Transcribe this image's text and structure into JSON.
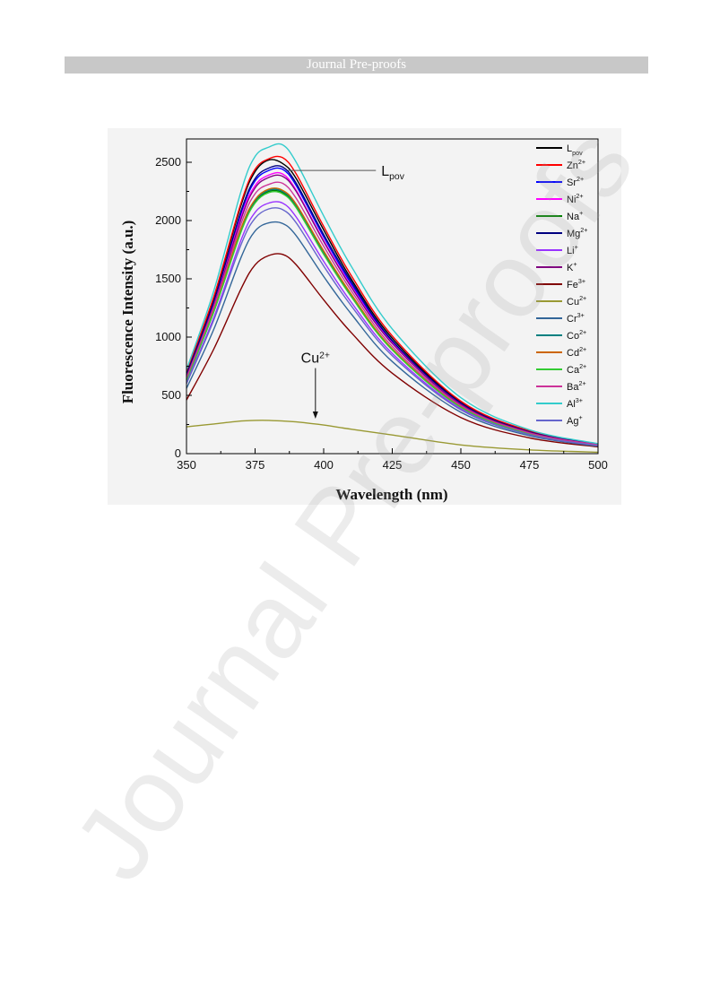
{
  "header": {
    "banner_text": "Journal Pre-proofs"
  },
  "watermark": {
    "text": "Journal Pre-proofs"
  },
  "chart_data": {
    "type": "line",
    "xlabel": "Wavelength (nm)",
    "ylabel": "Fluorescence Intensity (a.u.)",
    "xlim": [
      350,
      500
    ],
    "ylim": [
      0,
      2700
    ],
    "xticks": [
      350,
      375,
      400,
      425,
      450,
      475,
      500
    ],
    "yticks": [
      0,
      500,
      1000,
      1500,
      2000,
      2500
    ],
    "grid": false,
    "legend_position": "top-right",
    "annotations": [
      {
        "base": "L",
        "sup": "",
        "sub": "pov",
        "x": 387,
        "y": 2430,
        "text_x": 421,
        "text_y": 2400,
        "kind": "line"
      },
      {
        "base": "Cu",
        "sup": "2+",
        "sub": "",
        "x": 397,
        "y": 300,
        "text_x": 397,
        "text_y": 780,
        "kind": "arrow"
      }
    ],
    "series": [
      {
        "name_base": "L",
        "name_sup": "",
        "name_sub": "pov",
        "color": "#000000",
        "peak": 2520,
        "x": [
          350,
          360,
          370,
          375,
          380,
          385,
          390,
          400,
          410,
          425,
          450,
          475,
          500
        ],
        "values": [
          690,
          1340,
          2140,
          2420,
          2520,
          2490,
          2360,
          1920,
          1500,
          990,
          440,
          190,
          80
        ]
      },
      {
        "name_base": "Zn",
        "name_sup": "2+",
        "name_sub": "",
        "color": "#ff0000",
        "peak": 2540,
        "x": [
          350,
          360,
          370,
          375,
          380,
          385,
          390,
          400,
          410,
          425,
          450,
          475,
          500
        ],
        "values": [
          700,
          1350,
          2160,
          2440,
          2530,
          2540,
          2400,
          1950,
          1530,
          1010,
          450,
          195,
          82
        ]
      },
      {
        "name_base": "Sr",
        "name_sup": "2+",
        "name_sub": "",
        "color": "#0000ff",
        "peak": 2440,
        "x": [
          350,
          360,
          370,
          375,
          380,
          385,
          390,
          400,
          410,
          425,
          450,
          475,
          500
        ],
        "values": [
          670,
          1300,
          2070,
          2340,
          2430,
          2440,
          2300,
          1860,
          1460,
          960,
          430,
          185,
          78
        ]
      },
      {
        "name_base": "Ni",
        "name_sup": "2+",
        "name_sub": "",
        "color": "#ff00ff",
        "peak": 2400,
        "x": [
          350,
          360,
          370,
          375,
          380,
          385,
          390,
          400,
          410,
          425,
          450,
          475,
          500
        ],
        "values": [
          660,
          1280,
          2040,
          2300,
          2390,
          2400,
          2260,
          1830,
          1440,
          950,
          425,
          183,
          77
        ]
      },
      {
        "name_base": "Na",
        "name_sup": "+",
        "name_sub": "",
        "color": "#008000",
        "peak": 2250,
        "x": [
          350,
          360,
          370,
          375,
          380,
          385,
          390,
          400,
          410,
          425,
          450,
          475,
          500
        ],
        "values": [
          630,
          1220,
          1920,
          2160,
          2250,
          2240,
          2120,
          1720,
          1350,
          890,
          400,
          172,
          72
        ]
      },
      {
        "name_base": "Mg",
        "name_sup": "2+",
        "name_sub": "",
        "color": "#000080",
        "peak": 2460,
        "x": [
          350,
          360,
          370,
          375,
          380,
          385,
          390,
          400,
          410,
          425,
          450,
          475,
          500
        ],
        "values": [
          680,
          1310,
          2090,
          2360,
          2450,
          2460,
          2320,
          1880,
          1480,
          970,
          435,
          187,
          79
        ]
      },
      {
        "name_base": "Li",
        "name_sup": "+",
        "name_sub": "",
        "color": "#9933ff",
        "peak": 2150,
        "x": [
          350,
          360,
          370,
          375,
          380,
          385,
          390,
          400,
          410,
          425,
          450,
          475,
          500
        ],
        "values": [
          610,
          1170,
          1840,
          2070,
          2150,
          2150,
          2030,
          1650,
          1300,
          860,
          385,
          165,
          70
        ]
      },
      {
        "name_base": "K",
        "name_sup": "+",
        "name_sub": "",
        "color": "#800080",
        "peak": 2380,
        "x": [
          350,
          360,
          370,
          375,
          380,
          385,
          390,
          400,
          410,
          425,
          450,
          475,
          500
        ],
        "values": [
          660,
          1270,
          2020,
          2280,
          2370,
          2380,
          2250,
          1820,
          1430,
          945,
          422,
          182,
          76
        ]
      },
      {
        "name_base": "Fe",
        "name_sup": "3+",
        "name_sub": "",
        "color": "#800000",
        "peak": 1710,
        "x": [
          350,
          360,
          370,
          375,
          380,
          385,
          390,
          400,
          410,
          425,
          450,
          475,
          500
        ],
        "values": [
          460,
          900,
          1420,
          1620,
          1700,
          1710,
          1620,
          1320,
          1040,
          690,
          310,
          135,
          58
        ]
      },
      {
        "name_base": "Cu",
        "name_sup": "2+",
        "name_sub": "",
        "color": "#999933",
        "peak": 290,
        "x": [
          350,
          360,
          370,
          375,
          380,
          385,
          390,
          400,
          410,
          425,
          450,
          475,
          500
        ],
        "values": [
          230,
          255,
          280,
          285,
          285,
          280,
          272,
          245,
          210,
          160,
          75,
          32,
          12
        ]
      },
      {
        "name_base": "Cr",
        "name_sup": "3+",
        "name_sub": "",
        "color": "#336699",
        "peak": 1980,
        "x": [
          350,
          360,
          370,
          375,
          380,
          385,
          390,
          400,
          410,
          425,
          450,
          475,
          500
        ],
        "values": [
          560,
          1070,
          1690,
          1910,
          1980,
          1975,
          1870,
          1520,
          1200,
          790,
          355,
          153,
          64
        ]
      },
      {
        "name_base": "Co",
        "name_sup": "2+",
        "name_sub": "",
        "color": "#008080",
        "peak": 2260,
        "x": [
          350,
          360,
          370,
          375,
          380,
          385,
          390,
          400,
          410,
          425,
          450,
          475,
          500
        ],
        "values": [
          640,
          1230,
          1930,
          2170,
          2260,
          2250,
          2130,
          1730,
          1360,
          895,
          402,
          173,
          72
        ]
      },
      {
        "name_base": "Cd",
        "name_sup": "2+",
        "name_sub": "",
        "color": "#cc6600",
        "peak": 2270,
        "x": [
          350,
          360,
          370,
          375,
          380,
          385,
          390,
          400,
          410,
          425,
          450,
          475,
          500
        ],
        "values": [
          640,
          1240,
          1940,
          2180,
          2270,
          2260,
          2140,
          1740,
          1370,
          900,
          404,
          174,
          73
        ]
      },
      {
        "name_base": "Ca",
        "name_sup": "2+",
        "name_sub": "",
        "color": "#33cc33",
        "peak": 2240,
        "x": [
          350,
          360,
          370,
          375,
          380,
          385,
          390,
          400,
          410,
          425,
          450,
          475,
          500
        ],
        "values": [
          630,
          1220,
          1910,
          2150,
          2240,
          2230,
          2110,
          1710,
          1350,
          890,
          398,
          171,
          71
        ]
      },
      {
        "name_base": "Ba",
        "name_sup": "2+",
        "name_sub": "",
        "color": "#cc3399",
        "peak": 2320,
        "x": [
          350,
          360,
          370,
          375,
          380,
          385,
          390,
          400,
          410,
          425,
          450,
          475,
          500
        ],
        "values": [
          650,
          1260,
          1980,
          2230,
          2310,
          2320,
          2190,
          1780,
          1400,
          920,
          412,
          178,
          75
        ]
      },
      {
        "name_base": "Al",
        "name_sup": "3+",
        "name_sub": "",
        "color": "#33cccc",
        "peak": 2650,
        "x": [
          350,
          360,
          370,
          375,
          380,
          385,
          390,
          400,
          410,
          425,
          450,
          475,
          500
        ],
        "values": [
          720,
          1400,
          2260,
          2550,
          2630,
          2650,
          2500,
          2040,
          1610,
          1070,
          480,
          205,
          86
        ]
      },
      {
        "name_base": "Ag",
        "name_sup": "+",
        "name_sub": "",
        "color": "#6666cc",
        "peak": 2100,
        "x": [
          350,
          360,
          370,
          375,
          380,
          385,
          390,
          400,
          410,
          425,
          450,
          475,
          500
        ],
        "values": [
          600,
          1150,
          1800,
          2020,
          2100,
          2095,
          1980,
          1610,
          1270,
          840,
          376,
          162,
          68
        ]
      }
    ]
  }
}
